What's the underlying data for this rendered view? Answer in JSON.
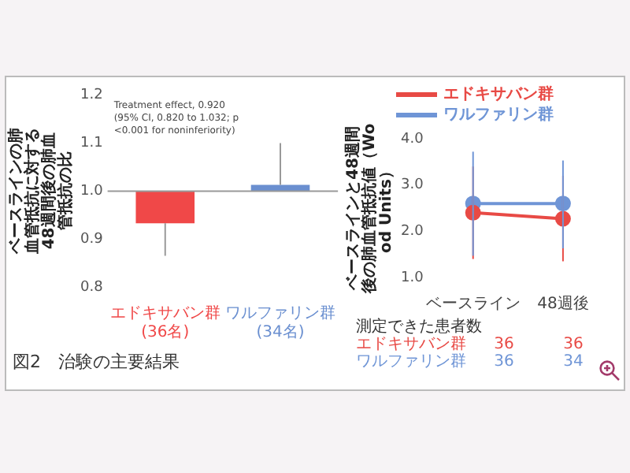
{
  "chart_data": [
    {
      "type": "bar",
      "ylabel": "ベースラインの肺血管抵抗に対する48週間後の肺血管抵抗の比",
      "categories": [
        "エドキサバン群 (36名)",
        "ワルファリン群 (34名)"
      ],
      "base": [
        1.0,
        1.0
      ],
      "values": [
        -0.067,
        0.013
      ],
      "colors": [
        "#f04848",
        "#6a8fd0"
      ],
      "errors": [
        [
          0.865,
          0.933
        ],
        [
          1.013,
          1.1
        ]
      ],
      "ylim": [
        0.8,
        1.2
      ],
      "yticks": [
        0.8,
        0.9,
        {
          "value": 1.0,
          "label": "1.0"
        },
        1.1,
        1.2
      ],
      "grid": false,
      "legend": false,
      "ref_lines": [
        {
          "axis": "y",
          "value": 1.0,
          "color": "#999999"
        }
      ],
      "annotations": [
        "Treatment effect, 0.920",
        "(95% CI, 0.820 to 1.032; p <0.001 for noninferiority)",
        "図2　治験の主要結果"
      ]
    },
    {
      "type": "line",
      "ylabel": "ベースラインと48週間後の肺血管抵抗値（Wood Units）",
      "categories": [
        "ベースライン",
        "48週後"
      ],
      "series": [
        {
          "name": "エドキサバン群",
          "color": "#e84a45",
          "values": [
            2.4,
            2.27
          ],
          "errors": [
            [
              1.4,
              3.4
            ],
            [
              1.35,
              3.2
            ]
          ]
        },
        {
          "name": "ワルファリン群",
          "color": "#6f95d6",
          "values": [
            2.6,
            2.6
          ],
          "errors": [
            [
              1.47,
              3.72
            ],
            [
              1.63,
              3.53
            ]
          ]
        }
      ],
      "ylim": [
        1.0,
        4.0
      ],
      "yticks": [
        {
          "value": 1.0,
          "label": "1.0"
        },
        {
          "value": 2.0,
          "label": "2.0"
        },
        {
          "value": 3.0,
          "label": "3.0"
        },
        {
          "value": 4.0,
          "label": "4.0"
        }
      ],
      "grid": false,
      "legend": "top",
      "marker": "circle",
      "annotations": [
        "測定できた患者数",
        "エドキサバン群",
        "36",
        "36",
        "ワルファリン群",
        "36",
        "34"
      ]
    }
  ]
}
